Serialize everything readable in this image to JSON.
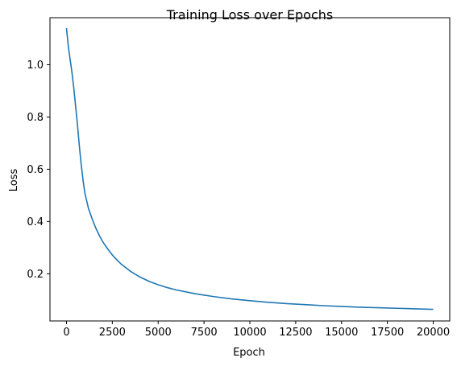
{
  "chart_data": {
    "type": "line",
    "title": "Training Loss over Epochs",
    "xlabel": "Epoch",
    "ylabel": "Loss",
    "xlim": [
      -900,
      20900
    ],
    "ylim": [
      0.0195,
      1.18
    ],
    "x_ticks": [
      0,
      2500,
      5000,
      7500,
      10000,
      12500,
      15000,
      17500,
      20000
    ],
    "y_ticks": [
      0.2,
      0.4,
      0.6,
      0.8,
      1.0
    ],
    "y_tick_labels": [
      "0.2",
      "0.4",
      "0.6",
      "0.8",
      "1.0"
    ],
    "grid": false,
    "series": [
      {
        "color": "#1f77b4",
        "x": [
          0,
          100,
          200,
          300,
          400,
          500,
          600,
          700,
          800,
          900,
          1000,
          1200,
          1400,
          1600,
          1800,
          2000,
          2250,
          2500,
          2750,
          3000,
          3500,
          4000,
          4500,
          5000,
          5500,
          6000,
          7000,
          8000,
          9000,
          10000,
          11000,
          12000,
          13000,
          14000,
          15000,
          16000,
          17000,
          18000,
          19000,
          20000
        ],
        "y": [
          1.14,
          1.07,
          1.02,
          0.97,
          0.91,
          0.84,
          0.77,
          0.69,
          0.62,
          0.56,
          0.51,
          0.45,
          0.41,
          0.375,
          0.345,
          0.32,
          0.295,
          0.272,
          0.253,
          0.236,
          0.209,
          0.188,
          0.171,
          0.158,
          0.147,
          0.138,
          0.124,
          0.113,
          0.104,
          0.097,
          0.091,
          0.086,
          0.082,
          0.078,
          0.075,
          0.072,
          0.07,
          0.068,
          0.066,
          0.064
        ]
      }
    ]
  }
}
